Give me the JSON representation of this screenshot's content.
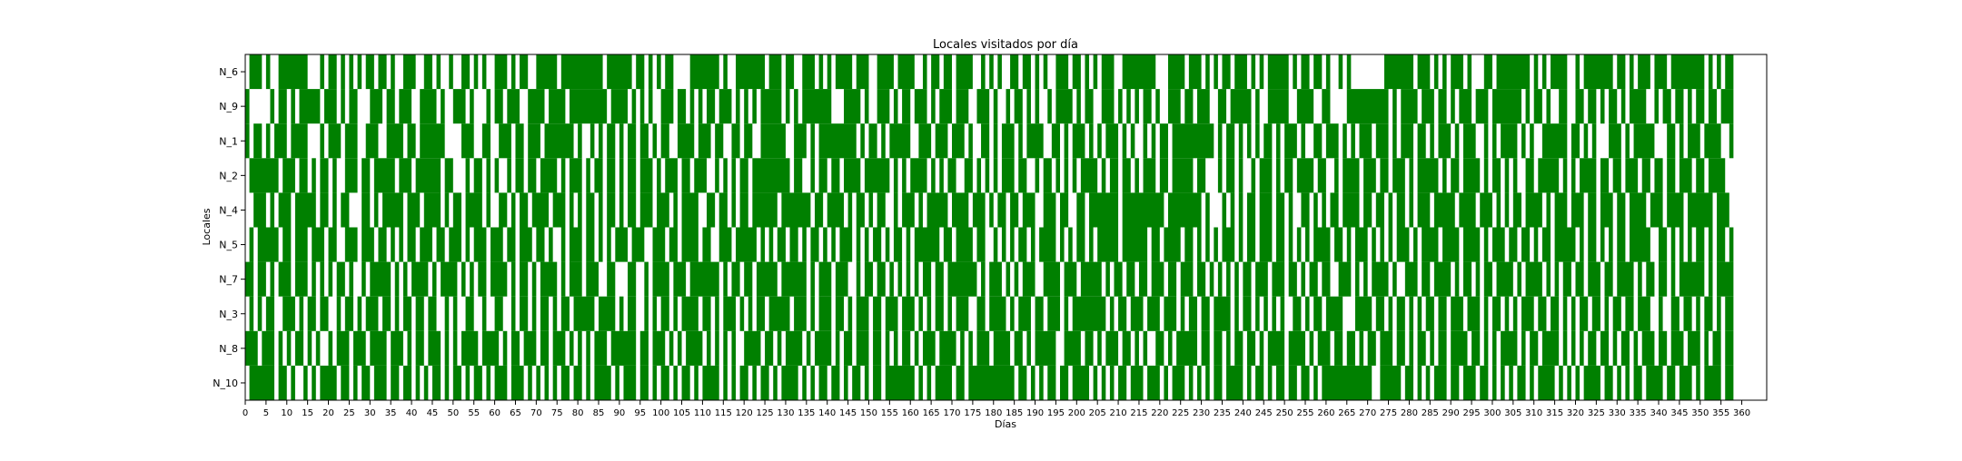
{
  "chart_data": {
    "type": "heatmap",
    "title": "Locales visitados por día",
    "xlabel": "Días",
    "ylabel": "Locales",
    "x_range": [
      0,
      366
    ],
    "x_ticks": [
      0,
      5,
      10,
      15,
      20,
      25,
      30,
      35,
      40,
      45,
      50,
      55,
      60,
      65,
      70,
      75,
      80,
      85,
      90,
      95,
      100,
      105,
      110,
      115,
      120,
      125,
      130,
      135,
      140,
      145,
      150,
      155,
      160,
      165,
      170,
      175,
      180,
      185,
      190,
      195,
      200,
      205,
      210,
      215,
      220,
      225,
      230,
      235,
      240,
      245,
      250,
      255,
      260,
      265,
      270,
      275,
      280,
      285,
      290,
      295,
      300,
      305,
      310,
      315,
      320,
      325,
      330,
      335,
      340,
      345,
      350,
      355,
      360
    ],
    "categories": [
      "N_6",
      "N_9",
      "N_1",
      "N_2",
      "N_4",
      "N_5",
      "N_7",
      "N_3",
      "N_8",
      "N_10"
    ],
    "visited_color": "#008000",
    "not_visited_color": "#ffffff",
    "grid": false,
    "legend": "none",
    "visits_note": "Binary matrix: 1 = visited (green), 0 = not visited (white). Pattern approximated per row.",
    "rows": [
      {
        "name": "N_6",
        "visited": "0111010011111110001011010101011011010011100110100100110101001110101100111110111111111101111110110101011000011111110100111111101110110011101010111101110011110111100101101101111001010100110110101001110110101011100111111110001111011101010110111010101111101011011010010100000000111111101110101011101000110111111110101011110010111111101101011101110111111110101011"
      },
      {
        "name": "N_9",
        "visited": "1000001011010111110111010110001110110111001111010011101000101101110011110111101111111110111101010100111011010101101110101010111110101011111110001111010011101011011101011101110011101001011010100101111010110011101010101101001110110111001101111101001111100111100110000111111111101011110111011010111011101111111010110100110011011010110101111001011011010110110111"
      },
      {
        "name": "N_1",
        "visited": "1011010111011110001011101110011100111101101111110000111001100111011011101111111010010101101011011010110011110111011001101100111111001110101111111110101101011111001110111011101001101011101011110011010111010101110101001010110111111111101011010101011010111010011011101010111011101011101101011101011100101011110101001111110110101000111010111110001101011101111001"
      },
      {
        "name": "N_2",
        "visited": "0111111101110110101101001110110111110111011111101100010110101001011011011110101110101101101011011101011101101110010101011011111111101100101101101111011111101010111101010110011010101011101100101101010101111010110110101110110111110110001011010010111010110111101100101111011101101110101111101011011110101101010011011111010101111011011011101101101101110110111100"
      },
      {
        "name": "N_4",
        "visited": "0011101011101111101101011000110101111101110111101011011110100110101101111011101010110101101011011101110101111001101101011011111101111111011011110101101011001011101011111011110111010110110111001110110011011111110111111111101111111101000101010110111011010011010101101111011011010110101110111110111101110101011011110101110111011011101101111011101111011111101110"
      },
      {
        "name": "N_5",
        "visited": "0101111101101110111011001110111011010101101110110111010111011101101110110100101110110101011101110011101101111011001110111110101011011010110101011101010110101101011111101101111011001010101101011110101011010111110111111011011110110101010111010110111011010101011110110101110101010111010111101111011110101110110110101101111101011010101101111100110101010110101101"
      },
      {
        "name": "N_7",
        "visited": "1101101011101110101010110100101111101010111101011110101011011110101101011110101110111001100011001011110111011111110101101101111101111110101110111001011011010101010110110111111101011101010111001111011101111101011011011011101101110110101010101101110111011010110110011101010111101001110110111101011010110111101011110101011011011101101111010110110101111110101111"
      },
      {
        "name": "N_3",
        "visited": "0101011001110101101100101101011101101011011011001010011001001100101101011010110111110111101011001010110101111011010111010101101111101110101110110101110110111011101010110101110011011110101110110111010111111110101101110111011101011011011110101101010101001101011011110001111011010110101011011011101110101101010111011011010101101101011011011100100110110101101011"
      },
      {
        "name": "N_8",
        "visited": "1110111010101101010010111011101111011101011011101010111101111010110111011011101010101110111111011011101010111101010101001111011010111101011110101101110110101011010111011110101011101111011010111110011110110101110110101001101011111011011010110110101111011110101110110110101101110110101101011011110110101011110101101111010101011011010110101110110111011101011011"
      },
      {
        "name": "N_10",
        "visited": "0111111011010010101111011010110111011011010101101011010110101110111010101010110110101111010111011010110101101011110101011010110101111010101101101011010110111111101010111101101111111111101101010110110111101010101101110111010111010101011011110101101011011011010111111111111001111101101010111011011101101010101101011110101010111101101010110111101101110101111011"
      }
    ]
  }
}
